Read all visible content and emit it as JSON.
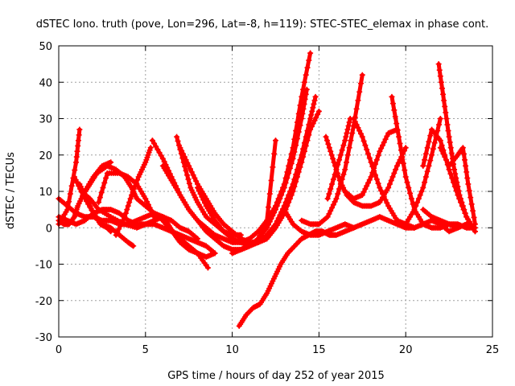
{
  "chart_data": {
    "type": "line",
    "title": "dSTEC Iono. truth (pove, Lon=296, Lat=-8, h=119): STEC-STEC_elemax in phase cont.",
    "xlabel": "GPS time / hours of day 252 of year 2015",
    "ylabel": "dSTEC  / TECUs",
    "xlim": [
      0,
      25
    ],
    "ylim": [
      -30,
      50
    ],
    "xticks": [
      0,
      5,
      10,
      15,
      20,
      25
    ],
    "yticks": [
      -30,
      -20,
      -10,
      0,
      10,
      20,
      30,
      40,
      50
    ],
    "grid": true,
    "legend": "none",
    "marker": "plus",
    "color": "#ff0000",
    "series": [
      {
        "x": [
          0.0,
          0.5,
          1.0,
          1.2
        ],
        "y": [
          1,
          5,
          18,
          27
        ]
      },
      {
        "x": [
          0.0,
          0.3,
          0.6,
          0.9,
          1.1,
          1.5,
          2.0,
          2.5,
          3.0
        ],
        "y": [
          2,
          1,
          1,
          3,
          6,
          10,
          14,
          17,
          18
        ]
      },
      {
        "x": [
          0.9,
          1.4,
          2.0,
          2.5,
          3.0,
          3.5,
          4.0,
          4.3
        ],
        "y": [
          14,
          9,
          4,
          1,
          0,
          -2,
          -4,
          -5
        ]
      },
      {
        "x": [
          1.2,
          1.6,
          2.0,
          2.4,
          2.8,
          3.0
        ],
        "y": [
          12,
          8,
          4,
          1,
          0,
          -1
        ]
      },
      {
        "x": [
          1.4,
          1.8,
          2.2,
          2.8,
          3.3,
          3.8,
          4.2,
          4.5,
          5.0,
          5.5,
          6.0,
          6.5,
          7.0,
          7.5,
          8.0,
          8.6
        ],
        "y": [
          9,
          12,
          15,
          17,
          16,
          14,
          11,
          8,
          6,
          4,
          2,
          -1,
          -3,
          -5,
          -7,
          -11
        ]
      },
      {
        "x": [
          2.3,
          2.8,
          3.5,
          4.0,
          4.5,
          5.0,
          5.5
        ],
        "y": [
          7,
          15,
          15,
          14,
          12,
          8,
          3
        ]
      },
      {
        "x": [
          3.3,
          3.8,
          4.2,
          4.6,
          5.0,
          5.3
        ],
        "y": [
          -2,
          3,
          9,
          14,
          18,
          22
        ]
      },
      {
        "x": [
          0.0,
          0.5,
          1.0,
          1.5,
          2.0,
          2.5,
          3.0,
          3.5,
          4.0,
          4.5,
          5.0,
          5.5,
          6.0,
          6.5,
          7.0,
          7.5,
          8.0,
          8.5,
          9.0
        ],
        "y": [
          3,
          2,
          1,
          2,
          4,
          5,
          5,
          4,
          2,
          1,
          1,
          1,
          0,
          -1,
          -2,
          -3,
          -4,
          -5,
          -7
        ]
      },
      {
        "x": [
          0.0,
          0.5,
          1.0,
          1.5,
          2.0,
          2.5,
          3.0,
          3.5,
          4.0,
          4.5,
          5.0,
          5.5,
          6.0,
          6.5,
          7.0,
          7.5,
          8.0
        ],
        "y": [
          8,
          6,
          4,
          3,
          3,
          2,
          2,
          1,
          1,
          2,
          3,
          4,
          3,
          2,
          0,
          -1,
          -3
        ]
      },
      {
        "x": [
          1.3,
          1.8,
          2.3,
          3.0,
          3.8,
          4.5,
          5.0,
          5.5,
          6.0,
          6.3,
          6.7,
          7.0,
          7.5,
          8.0,
          8.5,
          9.0
        ],
        "y": [
          10,
          8,
          5,
          3,
          1,
          0,
          1,
          2,
          3,
          1,
          -2,
          -4,
          -6,
          -7,
          -8,
          -7
        ]
      },
      {
        "x": [
          6.8,
          7.2,
          7.6,
          8.0,
          8.5,
          9.0,
          9.5,
          10.0,
          10.5
        ],
        "y": [
          25,
          18,
          11,
          7,
          3,
          1,
          -1,
          -2,
          -2
        ]
      },
      {
        "x": [
          5.4,
          6.0,
          6.5,
          7.0,
          7.5,
          8.0,
          8.5,
          9.0,
          9.5,
          10.0,
          10.5,
          11.0,
          11.5,
          12.0,
          12.5,
          13.0,
          13.5,
          14.0,
          14.5
        ],
        "y": [
          24,
          19,
          14,
          9,
          5,
          2,
          0,
          -2,
          -3,
          -4,
          -4,
          -3,
          -1,
          2,
          6,
          12,
          22,
          36,
          48
        ]
      },
      {
        "x": [
          6.0,
          6.5,
          7.0,
          7.5,
          8.0,
          8.5,
          9.0,
          9.5,
          10.0,
          10.5,
          11.0,
          11.5,
          12.0,
          12.5,
          13.0,
          13.5,
          14.0,
          14.3
        ],
        "y": [
          17,
          13,
          9,
          5,
          2,
          -1,
          -3,
          -5,
          -6,
          -6,
          -5,
          -3,
          0,
          5,
          11,
          19,
          30,
          38
        ]
      },
      {
        "x": [
          8.0,
          8.5,
          9.0,
          9.5,
          10.0,
          10.5,
          11.0,
          11.5,
          12.0,
          12.5,
          13.0,
          13.5,
          14.0,
          14.5,
          14.8
        ],
        "y": [
          11,
          6,
          2,
          -1,
          -3,
          -4,
          -5,
          -4,
          -2,
          1,
          6,
          12,
          20,
          30,
          36
        ]
      },
      {
        "x": [
          10.0,
          10.5,
          11.0,
          11.5,
          12.0,
          12.5
        ],
        "y": [
          -7,
          -6,
          -5,
          -3,
          2,
          24
        ]
      },
      {
        "x": [
          7.0,
          7.5,
          8.0,
          8.5,
          9.0,
          9.5,
          10.0,
          10.5,
          11.0,
          11.5,
          12.0,
          12.5,
          13.0,
          13.5,
          14.0,
          14.5,
          15.0
        ],
        "y": [
          22,
          17,
          12,
          8,
          4,
          1,
          -1,
          -3,
          -4,
          -4,
          -3,
          0,
          4,
          10,
          18,
          27,
          32
        ]
      },
      {
        "x": [
          10.4,
          10.8,
          11.2,
          11.6,
          12.0,
          12.4,
          12.8,
          13.2,
          13.6,
          14.0,
          14.4,
          14.8,
          15.2,
          15.6,
          16.0,
          16.5,
          17.0
        ],
        "y": [
          -27,
          -24,
          -22,
          -21,
          -18,
          -14,
          -10,
          -7,
          -5,
          -3,
          -2,
          -1,
          -1,
          -2,
          -2,
          -1,
          0
        ]
      },
      {
        "x": [
          13.0,
          13.5,
          14.0,
          14.5,
          15.0,
          15.5,
          16.0,
          16.5,
          17.0,
          17.5,
          18.0,
          18.5,
          19.0,
          19.5,
          20.0,
          20.5,
          21.0,
          21.5,
          22.0,
          22.5,
          23.0,
          23.5,
          24.0
        ],
        "y": [
          5,
          1,
          -1,
          -2,
          -2,
          -1,
          0,
          1,
          0,
          1,
          2,
          3,
          2,
          1,
          0,
          0,
          1,
          2,
          1,
          -1,
          0,
          1,
          0
        ]
      },
      {
        "x": [
          14.0,
          14.5,
          15.0,
          15.5,
          16.0,
          16.5,
          17.0,
          17.5
        ],
        "y": [
          2,
          1,
          1,
          3,
          8,
          16,
          28,
          42
        ]
      },
      {
        "x": [
          15.4,
          15.8,
          16.2,
          16.6,
          17.0,
          17.5,
          18.0,
          18.5,
          19.0,
          19.5,
          20.0
        ],
        "y": [
          25,
          19,
          13,
          9,
          7,
          6,
          6,
          7,
          11,
          17,
          22
        ]
      },
      {
        "x": [
          15.5,
          16.0,
          16.5,
          16.8
        ],
        "y": [
          8,
          16,
          24,
          30
        ]
      },
      {
        "x": [
          16.5,
          17.0,
          17.5,
          18.0,
          18.5,
          19.0,
          19.5
        ],
        "y": [
          10,
          8,
          9,
          14,
          21,
          26,
          27
        ]
      },
      {
        "x": [
          17.0,
          17.5,
          18.0,
          18.5,
          19.0,
          19.5,
          20.0,
          20.5
        ],
        "y": [
          30,
          25,
          18,
          11,
          6,
          2,
          1,
          0
        ]
      },
      {
        "x": [
          19.2,
          19.6,
          20.0,
          20.5,
          21.0,
          21.5,
          22.0,
          22.5,
          23.0
        ],
        "y": [
          36,
          25,
          14,
          5,
          1,
          0,
          0,
          1,
          0
        ]
      },
      {
        "x": [
          21.0,
          21.5,
          22.0,
          22.5,
          23.0,
          23.5,
          24.0
        ],
        "y": [
          5,
          3,
          2,
          1,
          1,
          0,
          0
        ]
      },
      {
        "x": [
          20.0,
          20.5,
          21.0,
          21.5,
          22.0
        ],
        "y": [
          1,
          5,
          11,
          20,
          30
        ]
      },
      {
        "x": [
          21.0,
          21.5,
          22.0,
          22.5,
          23.0,
          23.5,
          24.0
        ],
        "y": [
          17,
          27,
          24,
          16,
          9,
          3,
          -1
        ]
      },
      {
        "x": [
          21.9,
          22.2,
          22.5,
          22.8,
          23.1,
          23.5,
          24.0
        ],
        "y": [
          45,
          35,
          25,
          16,
          9,
          3,
          -1
        ]
      },
      {
        "x": [
          22.0,
          22.5,
          23.0,
          23.3,
          23.6,
          24.0
        ],
        "y": [
          22,
          17,
          20,
          22,
          12,
          1
        ]
      }
    ]
  }
}
